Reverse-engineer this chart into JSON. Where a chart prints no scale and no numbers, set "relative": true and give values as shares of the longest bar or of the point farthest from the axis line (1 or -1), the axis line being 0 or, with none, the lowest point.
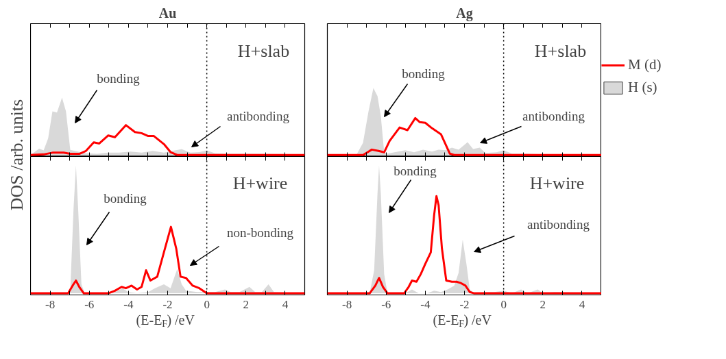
{
  "chart_data": [
    {
      "type": "line",
      "title": "Au",
      "ylabel": "DOS /arb. units",
      "relative": true,
      "xlim": [
        -9,
        5
      ],
      "xticks": [
        -8,
        {
          "value": -7,
          "label": null
        },
        -6,
        {
          "value": -5,
          "label": null
        },
        -4,
        {
          "value": -3,
          "label": null
        },
        -2,
        {
          "value": -1,
          "label": null
        },
        0,
        {
          "value": 1,
          "label": null
        },
        2,
        {
          "value": 3,
          "label": null
        },
        4
      ],
      "tick_labels": false,
      "legend": false,
      "ref_lines": [
        {
          "axis": "x",
          "value": 0,
          "label": null,
          "color": "#000000",
          "line_style": "dotted"
        }
      ],
      "annotations": [
        "H+slab",
        "bonding",
        "antibonding"
      ],
      "series": [
        {
          "color": "#ff0000",
          "x": [
            -9,
            -8.33,
            -7.88,
            -7.31,
            -6.97,
            -6.51,
            -6.17,
            -5.77,
            -5.49,
            -5.03,
            -4.69,
            -4.13,
            -3.67,
            -3.33,
            -2.99,
            -2.7,
            -2.19,
            -1.85,
            -1.51,
            5
          ],
          "values": [
            0,
            0.01,
            0.04,
            0.04,
            0.02,
            0.02,
            0.07,
            0.22,
            0.2,
            0.34,
            0.31,
            0.52,
            0.4,
            0.38,
            0.33,
            0.33,
            0.19,
            0.05,
            0,
            0
          ]
        },
        {
          "type": "area",
          "color": "#d9d9d9",
          "x": [
            -9,
            -8.56,
            -8.33,
            -8.1,
            -7.88,
            -7.65,
            -7.39,
            -7.19,
            -6.97,
            -6.74,
            -6.17,
            -5.6,
            -5.03,
            -4.47,
            -3.9,
            -3.33,
            -2.76,
            -2.19,
            -1.63,
            -1.28,
            -0.83,
            -0.38,
            0,
            0.42,
            1.22,
            2.35,
            5
          ],
          "values": [
            0,
            0.11,
            0.08,
            0.29,
            0.76,
            0.74,
            1,
            0.76,
            0.09,
            0.07,
            0.03,
            0.02,
            0.04,
            0.04,
            0.06,
            0.04,
            0.07,
            0.04,
            0.08,
            0.1,
            0.04,
            0.05,
            0.08,
            0.03,
            0.02,
            0.02,
            0.01
          ]
        }
      ]
    },
    {
      "type": "line",
      "title": "Ag",
      "relative": true,
      "xlim": [
        -9,
        5
      ],
      "xticks": [
        -8,
        {
          "value": -7,
          "label": null
        },
        -6,
        {
          "value": -5,
          "label": null
        },
        -4,
        {
          "value": -3,
          "label": null
        },
        -2,
        {
          "value": -1,
          "label": null
        },
        0,
        {
          "value": 1,
          "label": null
        },
        2,
        {
          "value": 3,
          "label": null
        },
        4
      ],
      "tick_labels": false,
      "legend": "right",
      "ref_lines": [
        {
          "axis": "x",
          "value": 0,
          "label": null,
          "color": "#000000",
          "line_style": "dotted"
        }
      ],
      "annotations": [
        "H+slab",
        "bonding",
        "antibonding"
      ],
      "series": [
        {
          "name": "M (d)",
          "color": "#ff0000",
          "x": [
            -9,
            -7.18,
            -6.95,
            -6.73,
            -6.39,
            -6.1,
            -5.82,
            -5.31,
            -4.91,
            -4.51,
            -4.28,
            -4,
            -3.66,
            -3.2,
            -2.75,
            -2.52,
            5
          ],
          "values": [
            0,
            0,
            0.04,
            0.08,
            0.06,
            0.04,
            0.21,
            0.41,
            0.37,
            0.55,
            0.49,
            0.48,
            0.4,
            0.31,
            0.02,
            0,
            0
          ]
        },
        {
          "name": "H (s)",
          "type": "area",
          "color": "#d9d9d9",
          "x": [
            -9,
            -7.52,
            -7.18,
            -6.9,
            -6.65,
            -6.44,
            -6.27,
            -6.1,
            -5.93,
            -5.02,
            -4.57,
            -4.11,
            -3.66,
            -3.32,
            -2.98,
            -2.64,
            -2.3,
            -1.84,
            -1.56,
            -1.22,
            -0.93,
            -0.36,
            0,
            0.43,
            1.11,
            2.02,
            5
          ],
          "values": [
            0,
            0,
            0.18,
            0.65,
            1,
            0.88,
            0.58,
            0.04,
            0.02,
            0.07,
            0.04,
            0.08,
            0.05,
            0.08,
            0.07,
            0.11,
            0.08,
            0.19,
            0.09,
            0.11,
            0.03,
            0.04,
            0.07,
            0.02,
            0.02,
            0.01,
            0.01
          ]
        }
      ]
    },
    {
      "type": "line",
      "xlabel": "(E-E$_{F}$) /eV",
      "relative": true,
      "xlim": [
        -9,
        5
      ],
      "xticks": [
        -8,
        {
          "value": -7,
          "label": null
        },
        -6,
        {
          "value": -5,
          "label": null
        },
        -4,
        {
          "value": -3,
          "label": null
        },
        -2,
        {
          "value": -1,
          "label": null
        },
        0,
        {
          "value": 1,
          "label": null
        },
        2,
        {
          "value": 3,
          "label": null
        },
        4
      ],
      "tick_labels": "x",
      "legend": false,
      "ref_lines": [
        {
          "axis": "x",
          "value": 0,
          "label": null,
          "color": "#000000",
          "line_style": "dotted"
        }
      ],
      "annotations": [
        "H+wire",
        "bonding",
        "non-bonding"
      ],
      "series": [
        {
          "color": "#ff0000",
          "x": [
            -9,
            -7.08,
            -6.85,
            -6.68,
            -6.51,
            -6.28,
            -5.03,
            -4.69,
            -4.35,
            -4.13,
            -3.84,
            -3.56,
            -3.33,
            -3.1,
            -2.88,
            -2.53,
            -2.19,
            -1.83,
            -1.56,
            -1.34,
            -1.06,
            -0.72,
            -0.38,
            0,
            5
          ],
          "values": [
            0,
            0,
            0.06,
            0.1,
            0.05,
            0,
            0,
            0.02,
            0.05,
            0.04,
            0.06,
            0.03,
            0.05,
            0.18,
            0.1,
            0.13,
            0.32,
            0.52,
            0.35,
            0.13,
            0.12,
            0.06,
            0.04,
            0,
            0
          ]
        },
        {
          "type": "area",
          "color": "#d9d9d9",
          "x": [
            -9,
            -7.14,
            -6.97,
            -6.8,
            -6.68,
            -6.57,
            -6.4,
            -6.23,
            -5.03,
            -4.69,
            -4.3,
            -4.01,
            -3.56,
            -2.99,
            -2.65,
            -2.19,
            -1.85,
            -1.51,
            -1.28,
            -1.06,
            -0.49,
            0,
            0.42,
            0.93,
            1.22,
            1.67,
            2.18,
            2.47,
            2.81,
            3.15,
            3.43,
            5
          ],
          "values": [
            0,
            0,
            0.02,
            0.67,
            1,
            0.67,
            0.07,
            0,
            0,
            0.01,
            0.04,
            0.01,
            0,
            0.01,
            0.04,
            0.07,
            0.04,
            0.19,
            0.07,
            0.02,
            0.01,
            0.01,
            0.01,
            0.03,
            0.01,
            0.01,
            0.05,
            0.01,
            0.01,
            0.07,
            0.01,
            0
          ]
        }
      ]
    },
    {
      "type": "line",
      "xlabel": "(E-E$_{F}$) /eV",
      "relative": true,
      "xlim": [
        -9,
        5
      ],
      "xticks": [
        -8,
        {
          "value": -7,
          "label": null
        },
        -6,
        {
          "value": -5,
          "label": null
        },
        -4,
        {
          "value": -3,
          "label": null
        },
        -2,
        {
          "value": -1,
          "label": null
        },
        0,
        {
          "value": 1,
          "label": null
        },
        2,
        {
          "value": 3,
          "label": null
        },
        4
      ],
      "tick_labels": "x",
      "legend": false,
      "ref_lines": [
        {
          "axis": "x",
          "value": 0,
          "label": null,
          "color": "#000000",
          "line_style": "dotted"
        }
      ],
      "annotations": [
        "H+wire",
        "bonding",
        "antibonding"
      ],
      "series": [
        {
          "color": "#ff0000",
          "x": [
            -9,
            -6.84,
            -6.55,
            -6.36,
            -6.16,
            -5.93,
            -5.08,
            -4.85,
            -4.68,
            -4.45,
            -4.23,
            -4,
            -3.72,
            -3.55,
            -3.43,
            -3.32,
            -3.15,
            -2.93,
            -2.64,
            -2.41,
            -2.18,
            -1.95,
            -1.73,
            -1.5,
            5
          ],
          "values": [
            0,
            0,
            0.06,
            0.12,
            0.05,
            0,
            0,
            0.05,
            0.1,
            0.09,
            0.15,
            0.23,
            0.32,
            0.61,
            0.76,
            0.69,
            0.35,
            0.1,
            0.09,
            0.09,
            0.08,
            0.06,
            0.01,
            0,
            0
          ]
        },
        {
          "type": "area",
          "color": "#d9d9d9",
          "x": [
            -9,
            -6.84,
            -6.61,
            -6.44,
            -6.36,
            -6.27,
            -6.1,
            -5.93,
            -5.02,
            -4.68,
            -4.34,
            -3.89,
            -3.55,
            -3.2,
            -2.86,
            -2.52,
            -2.3,
            -2.09,
            -1.9,
            -1.73,
            -1.5,
            -0.93,
            -0.48,
            0,
            0.43,
            0.89,
            1.23,
            1.74,
            2.02,
            2.59,
            5
          ],
          "values": [
            0,
            0,
            0.18,
            0.78,
            1,
            0.78,
            0.15,
            0,
            0,
            0.03,
            0,
            0,
            0.02,
            0.01,
            0.03,
            0.06,
            0.16,
            0.42,
            0.23,
            0.03,
            0,
            0.01,
            0.01,
            0.02,
            0,
            0.03,
            0,
            0.03,
            0,
            0.01,
            0
          ]
        }
      ]
    }
  ]
}
